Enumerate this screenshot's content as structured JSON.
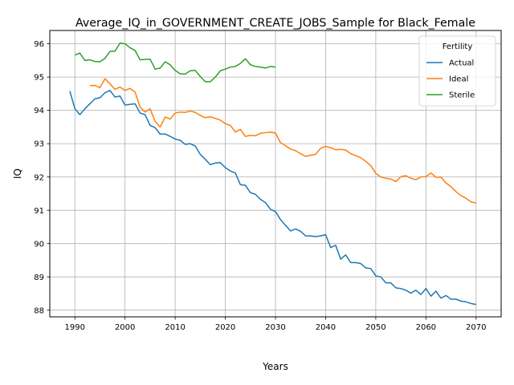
{
  "chart_data": {
    "type": "line",
    "title": "Average_IQ_in_GOVERNMENT_CREATE_JOBS_Sample for Black_Female",
    "xlabel": "Years",
    "ylabel": "IQ",
    "xlim": [
      1985,
      2075
    ],
    "ylim": [
      87.8,
      96.4
    ],
    "xticks": [
      1990,
      2000,
      2010,
      2020,
      2030,
      2040,
      2050,
      2060,
      2070
    ],
    "yticks": [
      88,
      89,
      90,
      91,
      92,
      93,
      94,
      95,
      96
    ],
    "grid": true,
    "legend": {
      "title": "Fertility",
      "position": "top-right"
    },
    "series": [
      {
        "name": "Actual",
        "color": "#1f77b4",
        "x_start": 1989,
        "values": [
          94.58,
          94.05,
          93.87,
          94.05,
          94.2,
          94.35,
          94.38,
          94.53,
          94.6,
          94.4,
          94.43,
          94.16,
          94.18,
          94.2,
          93.92,
          93.87,
          93.55,
          93.48,
          93.29,
          93.29,
          93.22,
          93.14,
          93.1,
          92.98,
          93.0,
          92.93,
          92.68,
          92.53,
          92.37,
          92.42,
          92.43,
          92.28,
          92.18,
          92.12,
          91.77,
          91.75,
          91.53,
          91.48,
          91.33,
          91.23,
          91.03,
          90.96,
          90.72,
          90.55,
          90.38,
          90.44,
          90.37,
          90.23,
          90.23,
          90.21,
          90.23,
          90.27,
          89.88,
          89.95,
          89.53,
          89.66,
          89.43,
          89.43,
          89.4,
          89.27,
          89.25,
          89.03,
          89.0,
          88.82,
          88.82,
          88.67,
          88.65,
          88.6,
          88.51,
          88.6,
          88.47,
          88.65,
          88.42,
          88.57,
          88.36,
          88.44,
          88.33,
          88.33,
          88.27,
          88.25,
          88.2,
          88.17
        ]
      },
      {
        "name": "Ideal",
        "color": "#ff7f0e",
        "x_start": 1993,
        "values": [
          94.74,
          94.75,
          94.68,
          94.95,
          94.8,
          94.63,
          94.7,
          94.6,
          94.66,
          94.55,
          94.1,
          93.95,
          94.05,
          93.67,
          93.5,
          93.8,
          93.74,
          93.92,
          93.95,
          93.94,
          93.98,
          93.94,
          93.85,
          93.78,
          93.81,
          93.76,
          93.71,
          93.6,
          93.55,
          93.35,
          93.43,
          93.22,
          93.25,
          93.24,
          93.31,
          93.33,
          93.35,
          93.32,
          93.03,
          92.94,
          92.84,
          92.79,
          92.7,
          92.62,
          92.65,
          92.68,
          92.86,
          92.92,
          92.88,
          92.82,
          92.83,
          92.81,
          92.7,
          92.64,
          92.58,
          92.47,
          92.34,
          92.11,
          92.0,
          91.96,
          91.94,
          91.86,
          92.01,
          92.04,
          91.96,
          91.92,
          92.0,
          92.01,
          92.12,
          91.99,
          92.0,
          91.82,
          91.71,
          91.56,
          91.44,
          91.36,
          91.25,
          91.22
        ]
      },
      {
        "name": "Sterile",
        "color": "#2ca02c",
        "x_start": 1990,
        "values": [
          95.66,
          95.72,
          95.5,
          95.52,
          95.47,
          95.46,
          95.56,
          95.77,
          95.78,
          96.02,
          96.0,
          95.88,
          95.8,
          95.52,
          95.53,
          95.54,
          95.24,
          95.27,
          95.46,
          95.37,
          95.2,
          95.1,
          95.09,
          95.19,
          95.2,
          95.02,
          94.86,
          94.86,
          95.0,
          95.19,
          95.24,
          95.3,
          95.32,
          95.41,
          95.55,
          95.37,
          95.32,
          95.3,
          95.27,
          95.32,
          95.3
        ]
      }
    ]
  }
}
